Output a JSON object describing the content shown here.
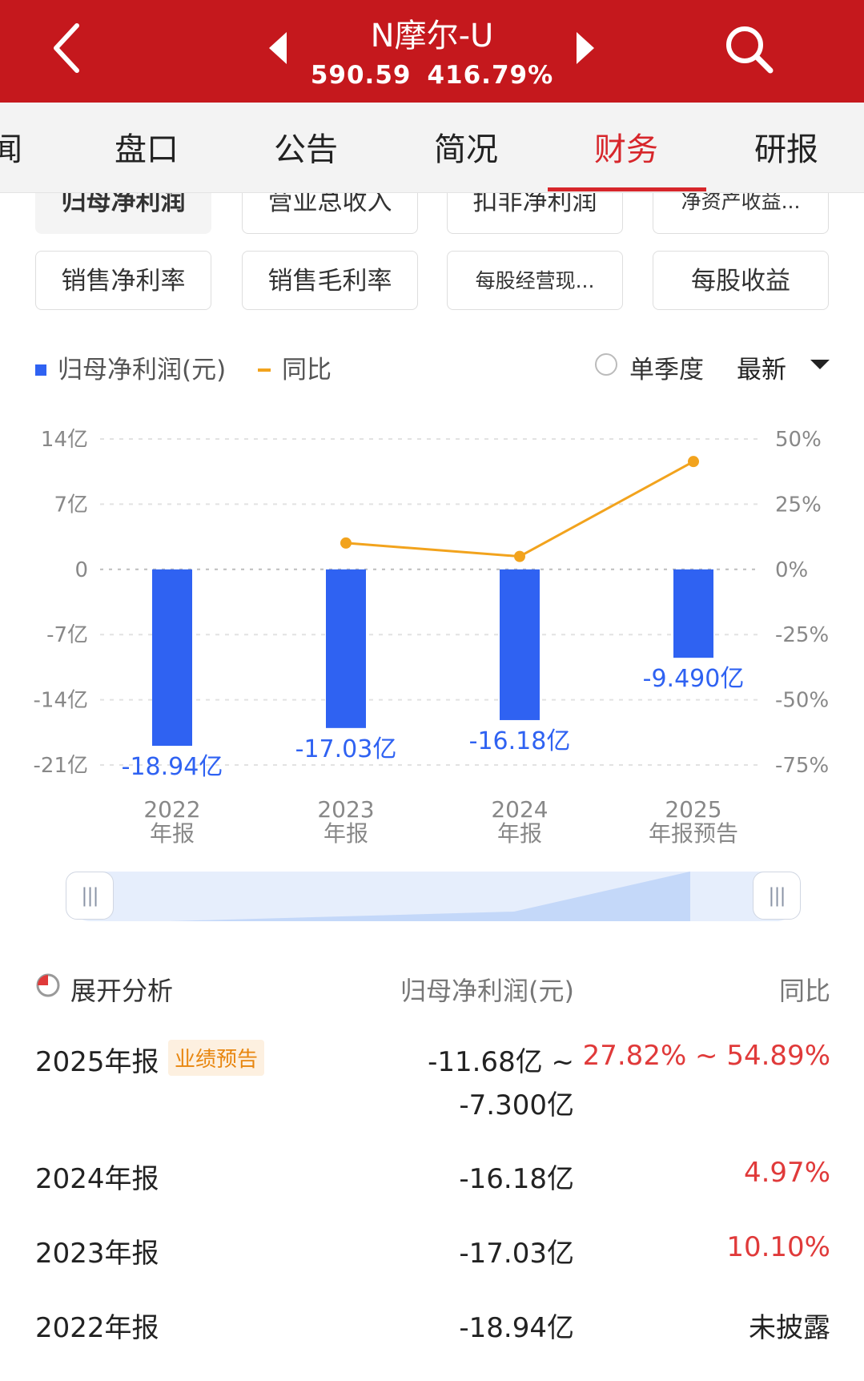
{
  "header": {
    "title": "N摩尔-U",
    "price": "590.59",
    "change_pct": "416.79%"
  },
  "tabs": [
    {
      "label": "闻",
      "active": false
    },
    {
      "label": "盘口",
      "active": false
    },
    {
      "label": "公告",
      "active": false
    },
    {
      "label": "简况",
      "active": false
    },
    {
      "label": "财务",
      "active": true
    },
    {
      "label": "研报",
      "active": false
    }
  ],
  "metric_chips": [
    {
      "label": "归母净利润",
      "selected": true
    },
    {
      "label": "营业总收入",
      "selected": false
    },
    {
      "label": "扣非净利润",
      "selected": false
    },
    {
      "label": "净资产收益...",
      "selected": false
    },
    {
      "label": "销售净利率",
      "selected": false
    },
    {
      "label": "销售毛利率",
      "selected": false
    },
    {
      "label": "每股经营现...",
      "selected": false
    },
    {
      "label": "每股收益",
      "selected": false
    }
  ],
  "legend": {
    "series1": "归母净利润(元)",
    "series2": "同比",
    "single_quarter": "单季度",
    "latest": "最新"
  },
  "colors": {
    "brand_red": "#c5181d",
    "active_tab": "#d7262b",
    "bar_blue": "#2f62f2",
    "line_orange": "#f2a31d",
    "positive_red": "#e03a3a",
    "badge_orange": "#e8860f"
  },
  "chart_data": {
    "type": "bar",
    "categories": [
      "2022年报",
      "2023年报",
      "2024年报",
      "2025年报预告"
    ],
    "category_lines": [
      [
        "2022",
        "年报"
      ],
      [
        "2023",
        "年报"
      ],
      [
        "2024",
        "年报"
      ],
      [
        "2025",
        "年报预告"
      ]
    ],
    "series": [
      {
        "name": "归母净利润(元)",
        "type": "bar",
        "axis": "left",
        "values": [
          -18.94,
          -17.03,
          -16.18,
          -9.49
        ],
        "labels": [
          "-18.94亿",
          "-17.03亿",
          "-16.18亿",
          "-9.490亿"
        ]
      },
      {
        "name": "同比",
        "type": "line",
        "axis": "right",
        "values": [
          null,
          10.1,
          4.97,
          41.35
        ]
      }
    ],
    "y_left": {
      "min": -21,
      "max": 14,
      "ticks": [
        14,
        7,
        0,
        -7,
        -14,
        -21
      ],
      "tick_labels": [
        "14亿",
        "7亿",
        "0",
        "-7亿",
        "-14亿",
        "-21亿"
      ]
    },
    "y_right": {
      "min": -75,
      "max": 50,
      "ticks": [
        50,
        25,
        0,
        -25,
        -50,
        -75
      ],
      "tick_labels": [
        "50%",
        "25%",
        "0%",
        "-25%",
        "-50%",
        "-75%"
      ]
    },
    "grid": true
  },
  "table": {
    "analysis_label": "展开分析",
    "col_value": "归母净利润(元)",
    "col_yoy": "同比",
    "rows": [
      {
        "period": "2025年报",
        "badge": "业绩预告",
        "value_line1": "-11.68亿 ~",
        "value_line2": "-7.300亿",
        "yoy": "27.82% ~ 54.89%"
      },
      {
        "period": "2024年报",
        "value": "-16.18亿",
        "yoy": "4.97%"
      },
      {
        "period": "2023年报",
        "value": "-17.03亿",
        "yoy": "10.10%"
      },
      {
        "period": "2022年报",
        "value": "-18.94亿",
        "yoy": "未披露"
      }
    ]
  }
}
